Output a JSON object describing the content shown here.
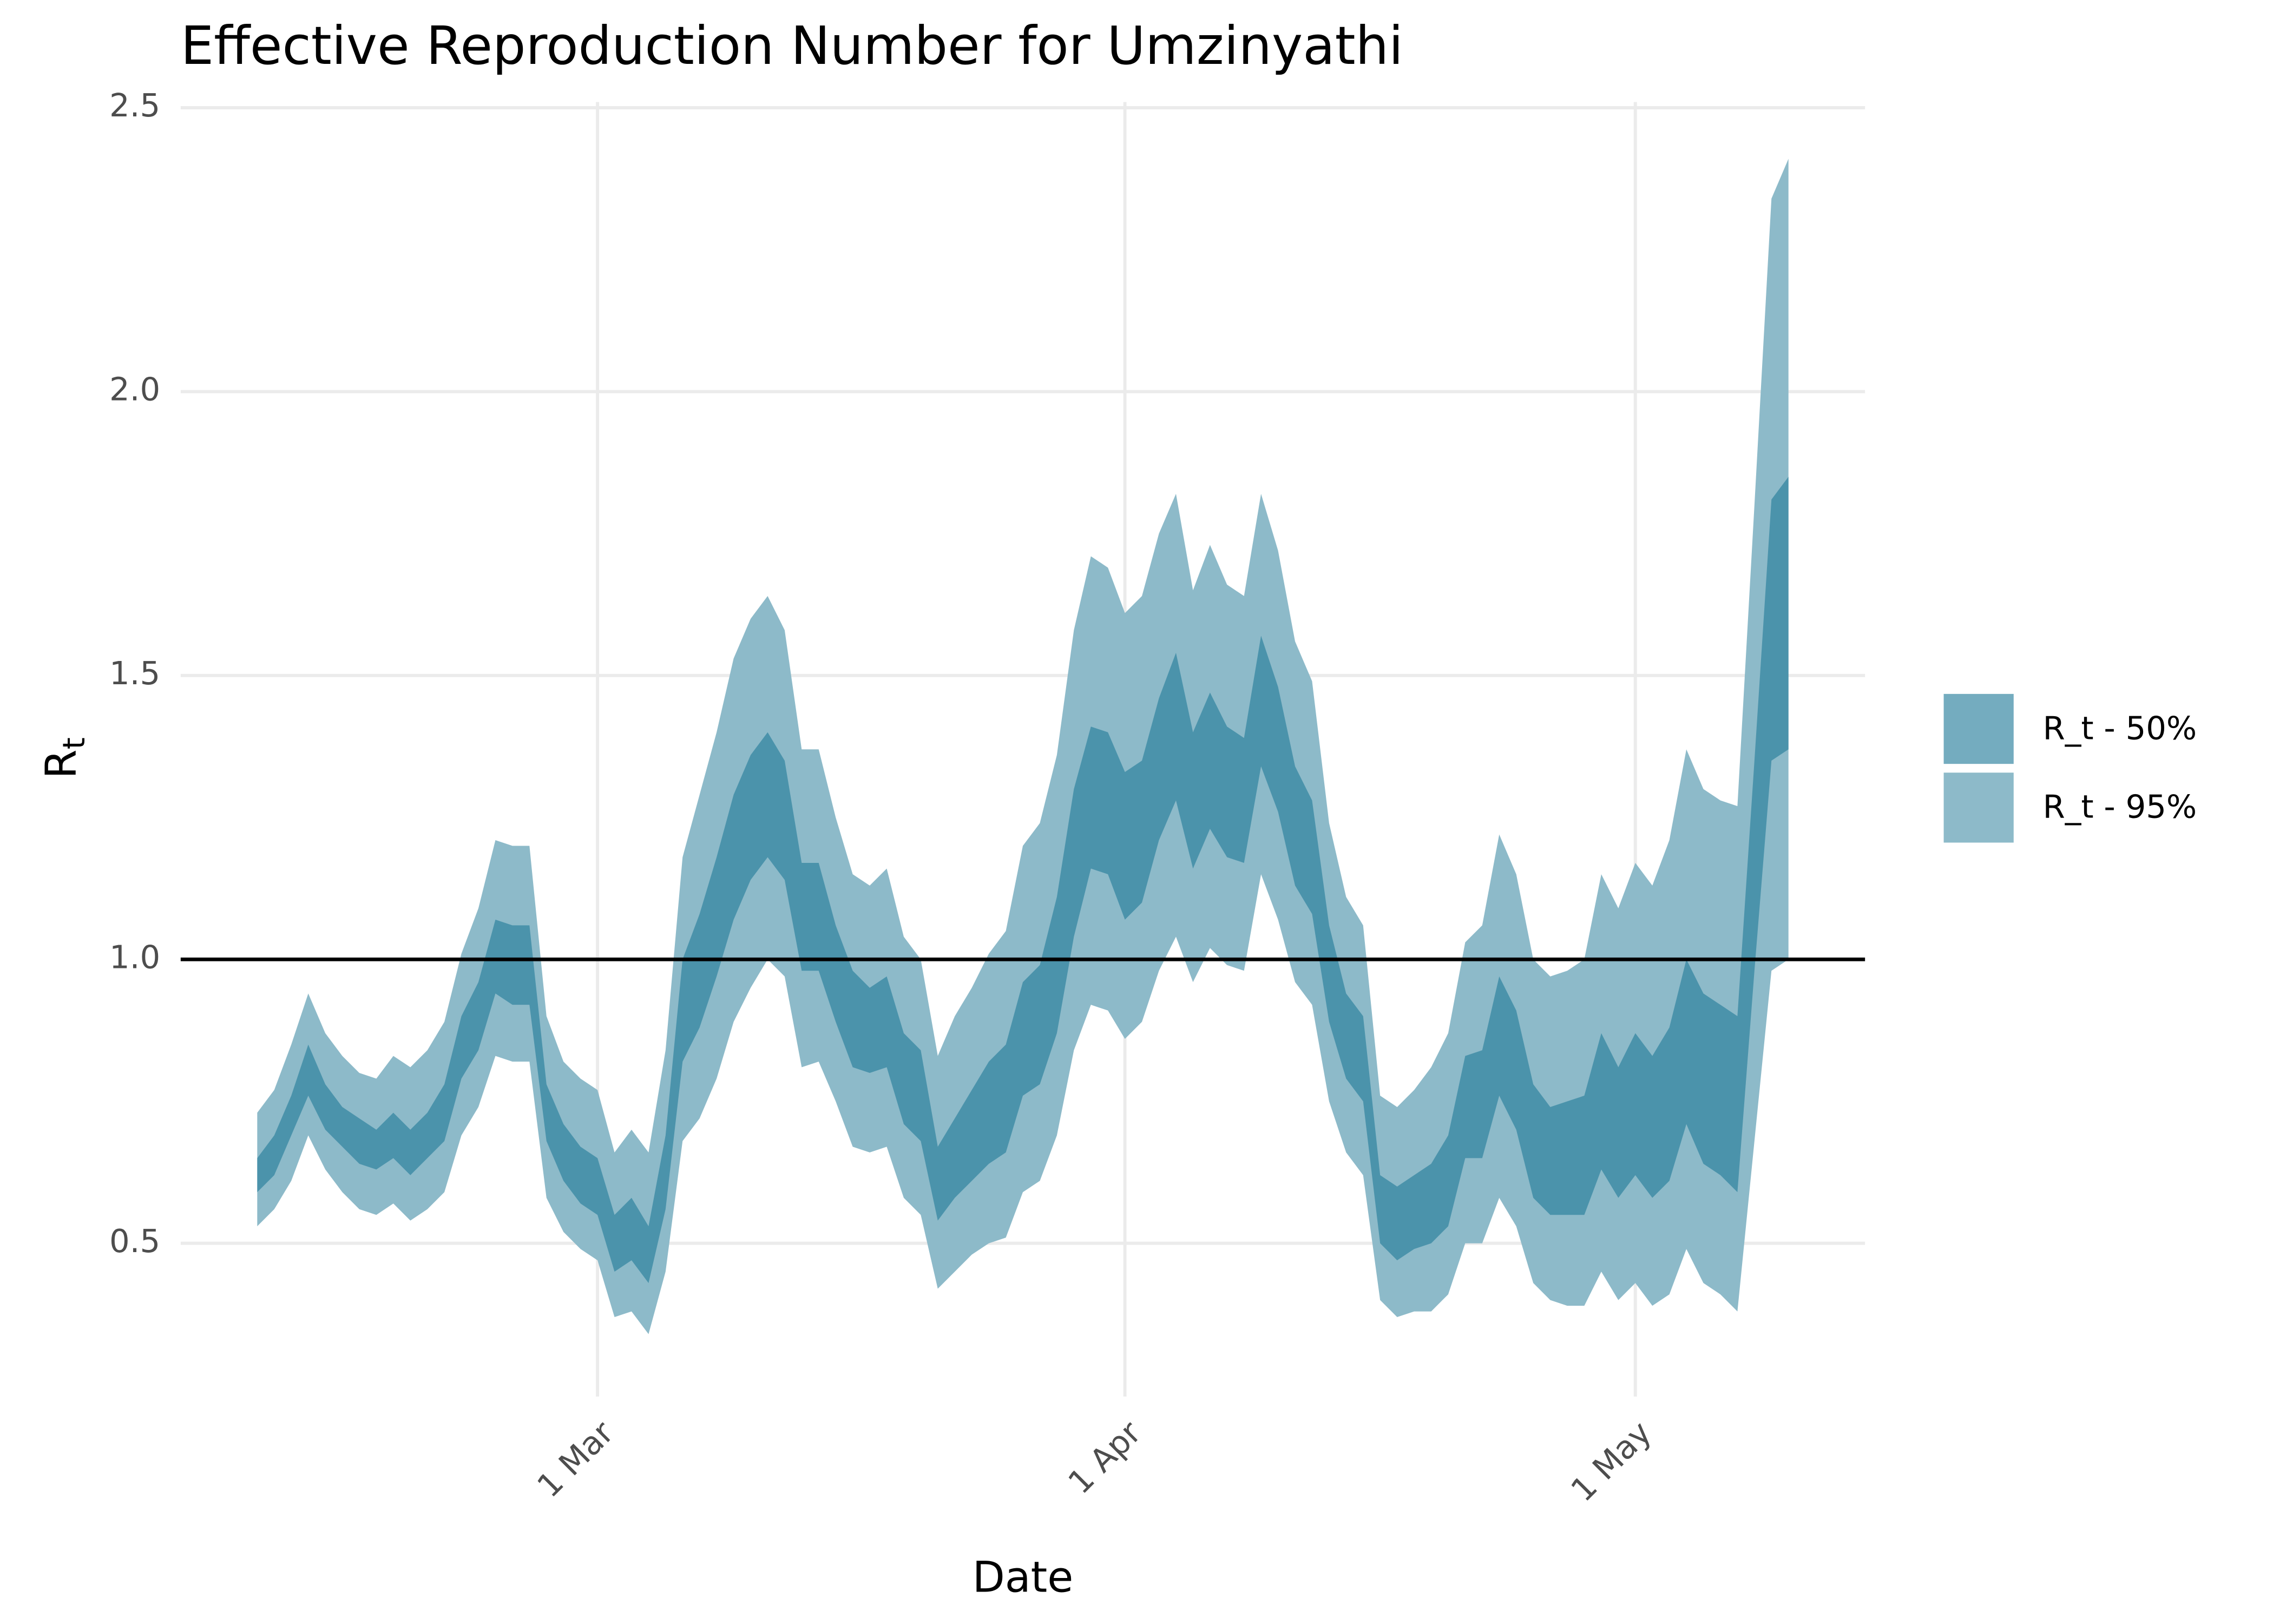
{
  "chart_data": {
    "type": "ribbon",
    "title": "Effective Reproduction Number for Umzinyathi",
    "x_label": "Date",
    "y_label": "R",
    "y_label_subscript": "t",
    "x": [
      -20,
      -19,
      -18,
      -17,
      -16,
      -15,
      -14,
      -13,
      -12,
      -11,
      -10,
      -9,
      -8,
      -7,
      -6,
      -5,
      -4,
      -3,
      -2,
      -1,
      0,
      1,
      2,
      3,
      4,
      5,
      6,
      7,
      8,
      9,
      10,
      11,
      12,
      13,
      14,
      15,
      16,
      17,
      18,
      19,
      20,
      21,
      22,
      23,
      24,
      25,
      26,
      27,
      28,
      29,
      30,
      31,
      32,
      33,
      34,
      35,
      36,
      37,
      38,
      39,
      40,
      41,
      42,
      43,
      44,
      45,
      46,
      47,
      48,
      49,
      50,
      51,
      52,
      53,
      54,
      55,
      56,
      57,
      58,
      59,
      60,
      61,
      62,
      63,
      64,
      65,
      66,
      67,
      68,
      69,
      70
    ],
    "xlim": [
      -24.5,
      74.5
    ],
    "xticks": [
      {
        "value": 0,
        "label": "1 Mar"
      },
      {
        "value": 31,
        "label": "1 Apr"
      },
      {
        "value": 61,
        "label": "1 May"
      }
    ],
    "ylim": [
      0.23,
      2.51
    ],
    "yticks": [
      0.5,
      1.0,
      1.5,
      2.0,
      2.5
    ],
    "yticklabels": [
      "0.5",
      "1.0",
      "1.5",
      "2.0",
      "2.5"
    ],
    "hline": 1,
    "grid": true,
    "legend": "right",
    "series": [
      {
        "name": "R_t - 50%",
        "color": "#3f8ca6",
        "upper": [
          0.65,
          0.69,
          0.76,
          0.85,
          0.78,
          0.74,
          0.72,
          0.7,
          0.73,
          0.7,
          0.73,
          0.78,
          0.9,
          0.96,
          1.07,
          1.06,
          1.06,
          0.78,
          0.71,
          0.67,
          0.65,
          0.55,
          0.58,
          0.53,
          0.69,
          1.0,
          1.08,
          1.18,
          1.29,
          1.36,
          1.4,
          1.35,
          1.17,
          1.17,
          1.06,
          0.98,
          0.95,
          0.97,
          0.87,
          0.84,
          0.67,
          0.72,
          0.77,
          0.82,
          0.85,
          0.96,
          0.99,
          1.11,
          1.3,
          1.41,
          1.4,
          1.33,
          1.35,
          1.46,
          1.54,
          1.4,
          1.47,
          1.41,
          1.39,
          1.57,
          1.48,
          1.34,
          1.28,
          1.06,
          0.94,
          0.9,
          0.62,
          0.6,
          0.62,
          0.64,
          0.69,
          0.83,
          0.84,
          0.97,
          0.91,
          0.78,
          0.74,
          0.75,
          0.76,
          0.87,
          0.81,
          0.87,
          0.83,
          0.88,
          1.0,
          0.94,
          0.92,
          0.9,
          1.35,
          1.81,
          1.85
        ],
        "lower": [
          0.59,
          0.62,
          0.69,
          0.76,
          0.7,
          0.67,
          0.64,
          0.63,
          0.65,
          0.62,
          0.65,
          0.68,
          0.79,
          0.84,
          0.94,
          0.92,
          0.92,
          0.68,
          0.61,
          0.57,
          0.55,
          0.45,
          0.47,
          0.43,
          0.56,
          0.82,
          0.88,
          0.97,
          1.07,
          1.14,
          1.18,
          1.14,
          0.98,
          0.98,
          0.89,
          0.81,
          0.8,
          0.81,
          0.71,
          0.68,
          0.54,
          0.58,
          0.61,
          0.64,
          0.66,
          0.76,
          0.78,
          0.87,
          1.04,
          1.16,
          1.15,
          1.07,
          1.1,
          1.21,
          1.28,
          1.16,
          1.23,
          1.18,
          1.17,
          1.34,
          1.26,
          1.13,
          1.08,
          0.89,
          0.79,
          0.75,
          0.5,
          0.47,
          0.49,
          0.5,
          0.53,
          0.65,
          0.65,
          0.76,
          0.7,
          0.58,
          0.55,
          0.55,
          0.55,
          0.63,
          0.58,
          0.62,
          0.58,
          0.61,
          0.71,
          0.64,
          0.62,
          0.59,
          0.98,
          1.35,
          1.37
        ]
      },
      {
        "name": "R_t - 95%",
        "color": "#8dbac9",
        "upper": [
          0.73,
          0.77,
          0.85,
          0.94,
          0.87,
          0.83,
          0.8,
          0.79,
          0.83,
          0.81,
          0.84,
          0.89,
          1.01,
          1.09,
          1.21,
          1.2,
          1.2,
          0.9,
          0.82,
          0.79,
          0.77,
          0.66,
          0.7,
          0.66,
          0.84,
          1.18,
          1.29,
          1.4,
          1.53,
          1.6,
          1.64,
          1.58,
          1.37,
          1.37,
          1.25,
          1.15,
          1.13,
          1.16,
          1.04,
          1.0,
          0.83,
          0.9,
          0.95,
          1.01,
          1.05,
          1.2,
          1.24,
          1.36,
          1.58,
          1.71,
          1.69,
          1.61,
          1.64,
          1.75,
          1.82,
          1.65,
          1.73,
          1.66,
          1.64,
          1.82,
          1.72,
          1.56,
          1.49,
          1.24,
          1.11,
          1.06,
          0.76,
          0.74,
          0.77,
          0.81,
          0.87,
          1.03,
          1.06,
          1.22,
          1.15,
          1.0,
          0.97,
          0.98,
          1.0,
          1.15,
          1.09,
          1.17,
          1.13,
          1.21,
          1.37,
          1.3,
          1.28,
          1.27,
          1.8,
          2.34,
          2.41
        ],
        "lower": [
          0.53,
          0.56,
          0.61,
          0.69,
          0.63,
          0.59,
          0.56,
          0.55,
          0.57,
          0.54,
          0.56,
          0.59,
          0.69,
          0.74,
          0.83,
          0.82,
          0.82,
          0.58,
          0.52,
          0.49,
          0.47,
          0.37,
          0.38,
          0.34,
          0.45,
          0.68,
          0.72,
          0.79,
          0.89,
          0.95,
          1.0,
          0.97,
          0.81,
          0.82,
          0.75,
          0.67,
          0.66,
          0.67,
          0.58,
          0.55,
          0.42,
          0.45,
          0.48,
          0.5,
          0.51,
          0.59,
          0.61,
          0.69,
          0.84,
          0.92,
          0.91,
          0.86,
          0.89,
          0.98,
          1.04,
          0.96,
          1.02,
          0.99,
          0.98,
          1.15,
          1.07,
          0.96,
          0.92,
          0.75,
          0.66,
          0.62,
          0.4,
          0.37,
          0.38,
          0.38,
          0.41,
          0.5,
          0.5,
          0.58,
          0.53,
          0.43,
          0.4,
          0.39,
          0.39,
          0.45,
          0.4,
          0.43,
          0.39,
          0.41,
          0.49,
          0.43,
          0.41,
          0.38,
          0.68,
          0.98,
          1.0
        ]
      }
    ]
  }
}
